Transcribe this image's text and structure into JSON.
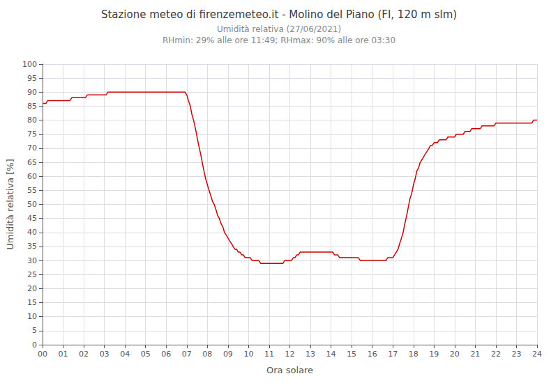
{
  "chart_data": {
    "type": "line",
    "title": "Stazione meteo di firenzemeteo.it - Molino del Piano (FI, 120 m slm)",
    "subtitle": "Umidità relativa (27/06/2021)\nRHmin: 29% alle ore 11:49; RHmax: 90% alle ore 03:30",
    "xlabel": "Ora solare",
    "ylabel": "Umidità relativa [%]",
    "xlim": [
      0,
      24
    ],
    "ylim": [
      0,
      100
    ],
    "xticks": [
      {
        "value": 0,
        "label": "00"
      },
      {
        "value": 1,
        "label": "01"
      },
      {
        "value": 2,
        "label": "02"
      },
      {
        "value": 3,
        "label": "03"
      },
      {
        "value": 4,
        "label": "04"
      },
      {
        "value": 5,
        "label": "05"
      },
      {
        "value": 6,
        "label": "06"
      },
      {
        "value": 7,
        "label": "07"
      },
      {
        "value": 8,
        "label": "08"
      },
      {
        "value": 9,
        "label": "09"
      },
      10,
      11,
      12,
      13,
      14,
      15,
      16,
      17,
      18,
      19,
      20,
      21,
      22,
      23,
      24
    ],
    "yticks": [
      0,
      5,
      10,
      15,
      20,
      25,
      30,
      35,
      40,
      45,
      50,
      55,
      60,
      65,
      70,
      75,
      80,
      85,
      90,
      95,
      100
    ],
    "grid": true,
    "color": "#cc0000",
    "x": [
      0.0,
      0.08,
      0.17,
      0.25,
      0.33,
      0.42,
      0.5,
      0.58,
      0.67,
      0.75,
      0.83,
      0.92,
      1.0,
      1.08,
      1.17,
      1.25,
      1.33,
      1.42,
      1.5,
      1.58,
      1.67,
      1.75,
      1.83,
      1.92,
      2.0,
      2.08,
      2.17,
      2.25,
      2.33,
      2.42,
      2.5,
      2.58,
      2.67,
      2.75,
      2.83,
      2.92,
      3.0,
      3.08,
      3.17,
      3.25,
      3.33,
      3.42,
      3.5,
      3.58,
      3.67,
      3.75,
      3.83,
      3.92,
      4.0,
      4.08,
      4.17,
      4.25,
      4.33,
      4.42,
      4.5,
      4.58,
      4.67,
      4.75,
      4.83,
      4.92,
      5.0,
      5.08,
      5.17,
      5.25,
      5.33,
      5.42,
      5.5,
      5.58,
      5.67,
      5.75,
      5.83,
      5.92,
      6.0,
      6.08,
      6.17,
      6.25,
      6.33,
      6.42,
      6.5,
      6.58,
      6.67,
      6.75,
      6.83,
      6.92,
      7.0,
      7.08,
      7.17,
      7.25,
      7.33,
      7.42,
      7.5,
      7.58,
      7.67,
      7.75,
      7.83,
      7.92,
      8.0,
      8.08,
      8.17,
      8.25,
      8.33,
      8.42,
      8.5,
      8.58,
      8.67,
      8.75,
      8.83,
      8.92,
      9.0,
      9.08,
      9.17,
      9.25,
      9.33,
      9.42,
      9.5,
      9.58,
      9.67,
      9.75,
      9.83,
      9.92,
      10.0,
      10.08,
      10.17,
      10.25,
      10.33,
      10.42,
      10.5,
      10.58,
      10.67,
      10.75,
      10.83,
      10.92,
      11.0,
      11.08,
      11.17,
      11.25,
      11.33,
      11.42,
      11.5,
      11.58,
      11.67,
      11.75,
      11.83,
      11.92,
      12.0,
      12.08,
      12.17,
      12.25,
      12.33,
      12.42,
      12.5,
      12.58,
      12.67,
      12.75,
      12.83,
      12.92,
      13.0,
      13.08,
      13.17,
      13.25,
      13.33,
      13.42,
      13.5,
      13.58,
      13.67,
      13.75,
      13.83,
      13.92,
      14.0,
      14.08,
      14.17,
      14.25,
      14.33,
      14.42,
      14.5,
      14.58,
      14.67,
      14.75,
      14.83,
      14.92,
      15.0,
      15.08,
      15.17,
      15.25,
      15.33,
      15.42,
      15.5,
      15.58,
      15.67,
      15.75,
      15.83,
      15.92,
      16.0,
      16.08,
      16.17,
      16.25,
      16.33,
      16.42,
      16.5,
      16.58,
      16.67,
      16.75,
      16.83,
      16.92,
      17.0,
      17.08,
      17.17,
      17.25,
      17.33,
      17.42,
      17.5,
      17.58,
      17.67,
      17.75,
      17.83,
      17.92,
      18.0,
      18.08,
      18.17,
      18.25,
      18.33,
      18.42,
      18.5,
      18.58,
      18.67,
      18.75,
      18.83,
      18.92,
      19.0,
      19.08,
      19.17,
      19.25,
      19.33,
      19.42,
      19.5,
      19.58,
      19.67,
      19.75,
      19.83,
      19.92,
      20.0,
      20.08,
      20.17,
      20.25,
      20.33,
      20.42,
      20.5,
      20.58,
      20.67,
      20.75,
      20.83,
      20.92,
      21.0,
      21.08,
      21.17,
      21.25,
      21.33,
      21.42,
      21.5,
      21.58,
      21.67,
      21.75,
      21.83,
      21.92,
      22.0,
      22.08,
      22.17,
      22.25,
      22.33,
      22.42,
      22.5,
      22.58,
      22.67,
      22.75,
      22.83,
      22.92,
      23.0,
      23.08,
      23.17,
      23.25,
      23.33,
      23.42,
      23.5,
      23.58,
      23.67,
      23.75,
      23.83,
      23.92,
      24.0
    ],
    "values": [
      86,
      86,
      86,
      87,
      87,
      87,
      87,
      87,
      87,
      87,
      87,
      87,
      87,
      87,
      87,
      87,
      87,
      88,
      88,
      88,
      88,
      88,
      88,
      88,
      88,
      88,
      89,
      89,
      89,
      89,
      89,
      89,
      89,
      89,
      89,
      89,
      89,
      89,
      90,
      90,
      90,
      90,
      90,
      90,
      90,
      90,
      90,
      90,
      90,
      90,
      90,
      90,
      90,
      90,
      90,
      90,
      90,
      90,
      90,
      90,
      90,
      90,
      90,
      90,
      90,
      90,
      90,
      90,
      90,
      90,
      90,
      90,
      90,
      90,
      90,
      90,
      90,
      90,
      90,
      90,
      90,
      90,
      90,
      90,
      89,
      87,
      85,
      82,
      80,
      77,
      74,
      71,
      68,
      65,
      62,
      59,
      57,
      55,
      53,
      51,
      50,
      48,
      46,
      45,
      43,
      42,
      40,
      39,
      38,
      37,
      36,
      35,
      34,
      34,
      33,
      33,
      32,
      32,
      31,
      31,
      31,
      31,
      30,
      30,
      30,
      30,
      30,
      29,
      29,
      29,
      29,
      29,
      29,
      29,
      29,
      29,
      29,
      29,
      29,
      29,
      29,
      30,
      30,
      30,
      30,
      30,
      31,
      31,
      32,
      32,
      33,
      33,
      33,
      33,
      33,
      33,
      33,
      33,
      33,
      33,
      33,
      33,
      33,
      33,
      33,
      33,
      33,
      33,
      33,
      33,
      32,
      32,
      32,
      31,
      31,
      31,
      31,
      31,
      31,
      31,
      31,
      31,
      31,
      31,
      31,
      30,
      30,
      30,
      30,
      30,
      30,
      30,
      30,
      30,
      30,
      30,
      30,
      30,
      30,
      30,
      30,
      31,
      31,
      31,
      31,
      32,
      33,
      34,
      36,
      38,
      40,
      43,
      46,
      49,
      52,
      54,
      57,
      59,
      62,
      63,
      65,
      66,
      67,
      68,
      69,
      70,
      71,
      71,
      72,
      72,
      72,
      73,
      73,
      73,
      73,
      73,
      74,
      74,
      74,
      74,
      74,
      75,
      75,
      75,
      75,
      75,
      76,
      76,
      76,
      76,
      77,
      77,
      77,
      77,
      77,
      77,
      78,
      78,
      78,
      78,
      78,
      78,
      78,
      78,
      79,
      79,
      79,
      79,
      79,
      79,
      79,
      79,
      79,
      79,
      79,
      79,
      79,
      79,
      79,
      79,
      79,
      79,
      79,
      79,
      79,
      79,
      80,
      80,
      80
    ]
  }
}
